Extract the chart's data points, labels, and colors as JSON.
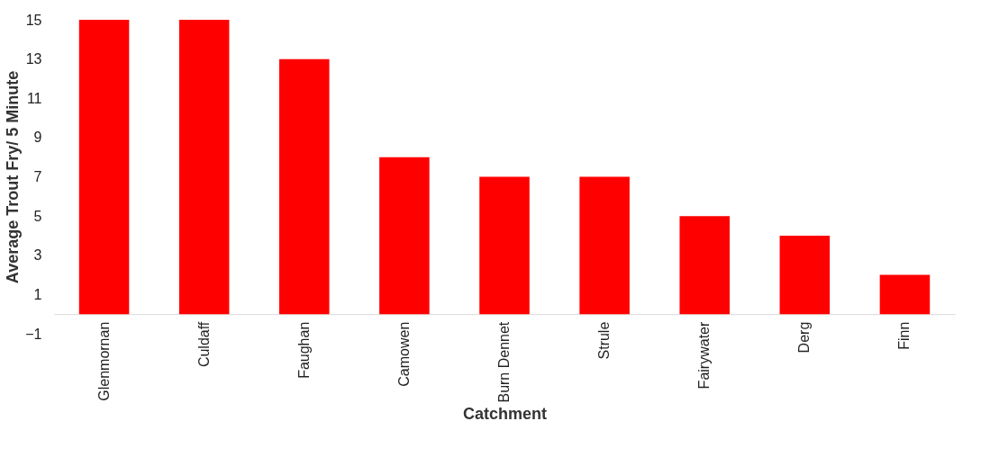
{
  "chart_data": {
    "type": "bar",
    "xlabel": "Catchment",
    "ylabel": "Average Trout Fry/ 5 Minute",
    "categories": [
      "Glenmornan",
      "Culdaff",
      "Faughan",
      "Camowen",
      "Burn Dennet",
      "Strule",
      "Fairywater",
      "Derg",
      "Finn"
    ],
    "values": [
      15,
      15,
      13,
      8,
      7,
      7,
      5,
      4,
      2
    ],
    "color": "#ff0000",
    "ylim": [
      -1,
      15
    ],
    "yticks": [
      -1,
      1,
      3,
      5,
      7,
      9,
      11,
      13,
      15
    ],
    "grid": false
  }
}
